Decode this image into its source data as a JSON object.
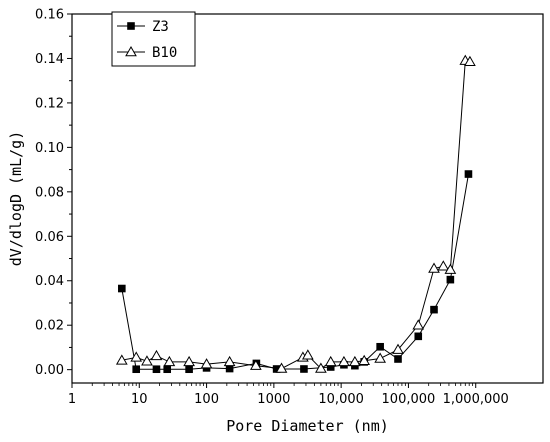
{
  "chart_data": {
    "type": "line",
    "title": "",
    "xlabel": "Pore Diameter (nm)",
    "ylabel": "dV/dlogD (mL/g)",
    "x_scale": "log",
    "xlim": [
      1,
      10000000
    ],
    "ylim": [
      -0.006,
      0.16
    ],
    "x_ticks": [
      1,
      10,
      100,
      1000,
      10000,
      100000,
      1000000
    ],
    "x_tick_labels": [
      "1",
      "10",
      "100",
      "1000",
      "10,000",
      "100,000",
      "1,000,000"
    ],
    "y_ticks": [
      0,
      0.02,
      0.04,
      0.06,
      0.08,
      0.1,
      0.12,
      0.14,
      0.16
    ],
    "y_tick_labels": [
      "0.00",
      "0.02",
      "0.04",
      "0.06",
      "0.08",
      "0.10",
      "0.12",
      "0.14",
      "0.16"
    ],
    "grid": false,
    "legend_position": "top-left",
    "series": [
      {
        "name": "Z3",
        "marker": "filled-square",
        "color": "#000000",
        "x": [
          5.5,
          9,
          18,
          26,
          55,
          100,
          220,
          550,
          1100,
          2800,
          7000,
          11000,
          16000,
          22000,
          38000,
          70000,
          140000,
          240000,
          420000,
          780000
        ],
        "y": [
          0.0365,
          0.0002,
          0.0002,
          0.0002,
          0.0002,
          0.0008,
          0.0005,
          0.0028,
          0.0003,
          0.0003,
          0.0012,
          0.0022,
          0.0018,
          0.0035,
          0.0103,
          0.0048,
          0.015,
          0.027,
          0.0405,
          0.088
        ]
      },
      {
        "name": "B10",
        "marker": "open-triangle",
        "color": "#000000",
        "x": [
          5.5,
          9,
          13,
          18,
          28,
          55,
          100,
          220,
          540,
          1300,
          2700,
          3200,
          5000,
          7000,
          11000,
          16000,
          22000,
          38000,
          70000,
          140000,
          240000,
          330000,
          420000,
          700000,
          820000
        ],
        "y": [
          0.0042,
          0.0055,
          0.0038,
          0.0062,
          0.0035,
          0.0035,
          0.0025,
          0.0035,
          0.0018,
          0.0005,
          0.0055,
          0.0065,
          0.0005,
          0.0035,
          0.0035,
          0.0035,
          0.004,
          0.005,
          0.009,
          0.02,
          0.0455,
          0.0465,
          0.045,
          0.139,
          0.1385
        ]
      }
    ]
  }
}
